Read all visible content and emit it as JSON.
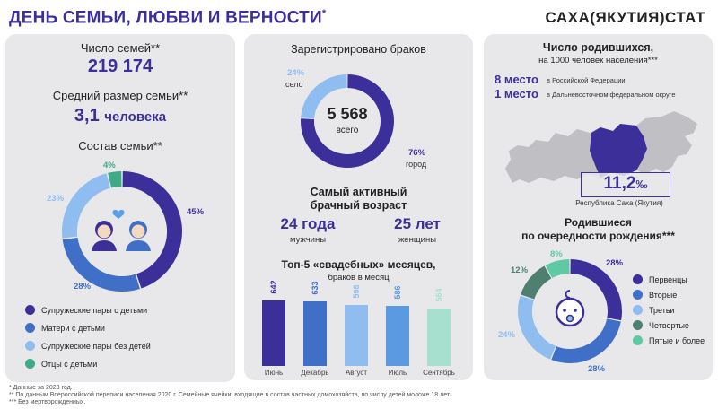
{
  "header": {
    "title": "ДЕНЬ СЕМЬИ, ЛЮБВИ И ВЕРНОСТИ",
    "title_mark": "*",
    "brand": "САХА(ЯКУТИЯ)СТАТ"
  },
  "families": {
    "count_label": "Число семей**",
    "count_value": "219 174",
    "avg_label": "Средний размер семьи**",
    "avg_value": "3,1",
    "avg_unit": "человека",
    "composition_label": "Состав семьи**",
    "composition": [
      {
        "name": "Супружеские пары с детьми",
        "pct": "45%",
        "value": 45,
        "color": "#3c2f9a"
      },
      {
        "name": "Матери с детьми",
        "pct": "28%",
        "value": 28,
        "color": "#3f6fc6"
      },
      {
        "name": "Супружеские пары без детей",
        "pct": "23%",
        "value": 23,
        "color": "#8fbdf0"
      },
      {
        "name": "Отцы с детьми",
        "pct": "4%",
        "value": 4,
        "color": "#3faa86"
      }
    ]
  },
  "marriages": {
    "registered_label": "Зарегистрировано браков",
    "total": "5 568",
    "total_sub": "всего",
    "rural_pct": "24%",
    "rural_label": "село",
    "urban_pct": "76%",
    "urban_label": "город",
    "rural_value": 24,
    "urban_value": 76,
    "age_title_1": "Самый активный",
    "age_title_2": "брачный возраст",
    "men_age": "24 года",
    "men_label": "мужчины",
    "women_age": "25 лет",
    "women_label": "женщины",
    "months_title_1": "Топ-5 «свадебных» месяцев,",
    "months_title_2": "браков в месяц",
    "months_data": {
      "type": "bar",
      "categories": [
        "Июнь",
        "Декабрь",
        "Август",
        "Июль",
        "Сентябрь"
      ],
      "values": [
        642,
        633,
        598,
        586,
        564
      ],
      "colors": [
        "#3c2f9a",
        "#3f6fc6",
        "#8fbdf0",
        "#5b9ae0",
        "#a8e0cf"
      ]
    }
  },
  "births": {
    "title_1": "Число родившихся,",
    "title_2": "на 1000 человек населения***",
    "rank_1": "8 место",
    "rank_1_text": "в Российской Федерации",
    "rank_2": "1 место",
    "rank_2_text": "в Дальневосточном федеральном округе",
    "rate": "11,2",
    "rate_unit": "‰",
    "region_label": "Республика Саха (Якутия)",
    "order_title_1": "Родившиеся",
    "order_title_2": "по очередности рождения***",
    "order": [
      {
        "name": "Первенцы",
        "pct": "28%",
        "value": 28,
        "color": "#3c2f9a"
      },
      {
        "name": "Вторые",
        "pct": "28%",
        "value": 28,
        "color": "#3f6fc6"
      },
      {
        "name": "Третьи",
        "pct": "24%",
        "value": 24,
        "color": "#8fbdf0"
      },
      {
        "name": "Четвертые",
        "pct": "12%",
        "value": 12,
        "color": "#4e7f6f"
      },
      {
        "name": "Пятые и более",
        "pct": "8%",
        "value": 8,
        "color": "#5ec9a2"
      }
    ]
  },
  "footnotes": [
    "* Данные за 2023 год.",
    "** По данным Всероссийской переписи населения 2020 г. Семейные ячейки, входящие в состав  частных домохозяйств, по числу детей моложе 18 лет.",
    "*** Без мертворожденных."
  ]
}
